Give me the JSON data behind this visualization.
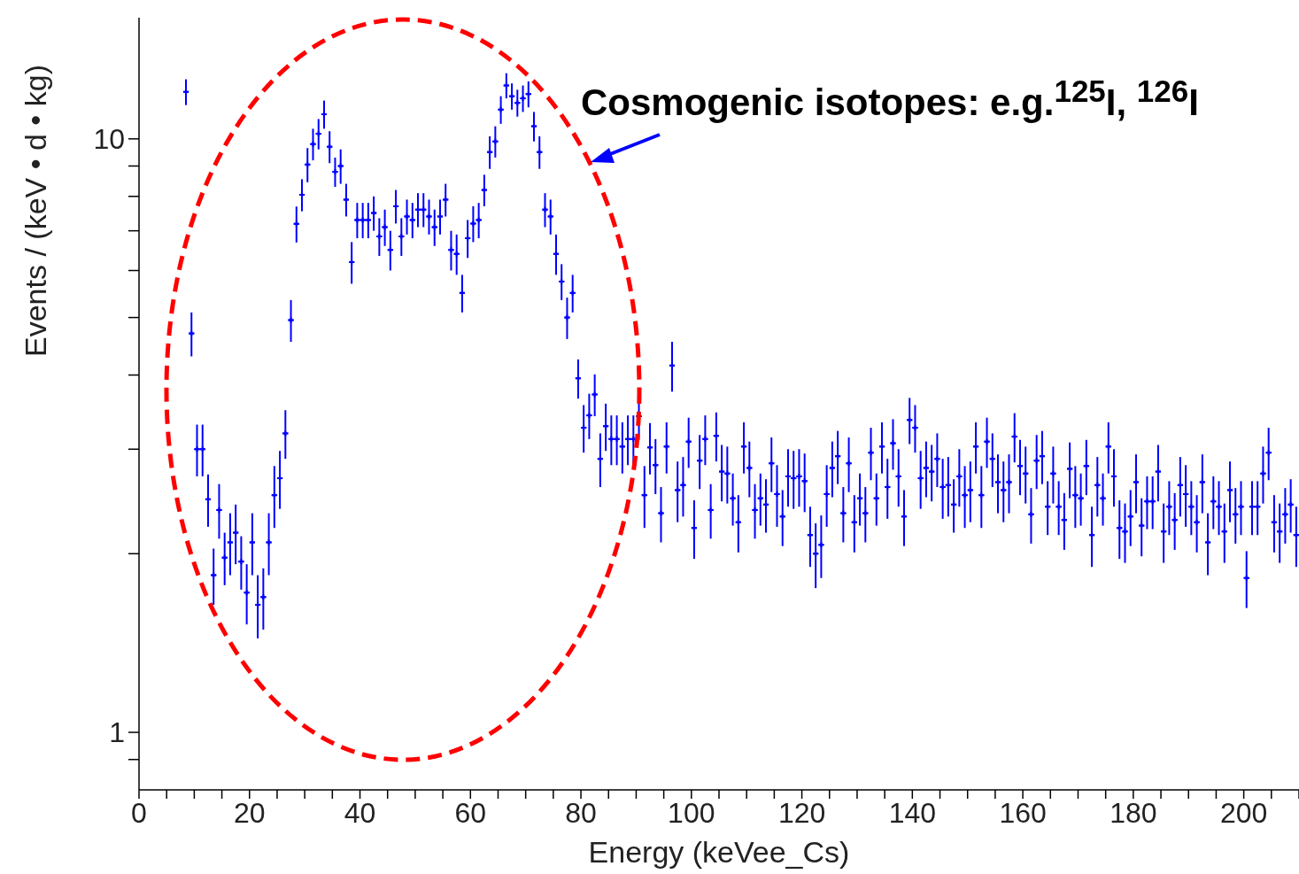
{
  "chart_data": {
    "type": "scatter",
    "xlabel": "Energy (keVee_Cs)",
    "ylabel": "Events / (keV • d • kg)",
    "annotations": [
      "Cosmogenic isotopes: e.g.$^{125}$I, $^{126}$I"
    ],
    "log": "y",
    "grid": false,
    "legend": false,
    "marker": "cross",
    "xlim": [
      0,
      210
    ],
    "xticks": [
      0,
      {
        "value": 5,
        "label": null
      },
      {
        "value": 10,
        "label": null
      },
      {
        "value": 15,
        "label": null
      },
      20,
      {
        "value": 25,
        "label": null
      },
      {
        "value": 30,
        "label": null
      },
      {
        "value": 35,
        "label": null
      },
      40,
      {
        "value": 45,
        "label": null
      },
      {
        "value": 50,
        "label": null
      },
      {
        "value": 55,
        "label": null
      },
      60,
      {
        "value": 65,
        "label": null
      },
      {
        "value": 70,
        "label": null
      },
      {
        "value": 75,
        "label": null
      },
      80,
      {
        "value": 85,
        "label": null
      },
      {
        "value": 90,
        "label": null
      },
      {
        "value": 95,
        "label": null
      },
      100,
      {
        "value": 105,
        "label": null
      },
      {
        "value": 110,
        "label": null
      },
      {
        "value": 115,
        "label": null
      },
      120,
      {
        "value": 125,
        "label": null
      },
      {
        "value": 130,
        "label": null
      },
      {
        "value": 135,
        "label": null
      },
      140,
      {
        "value": 145,
        "label": null
      },
      {
        "value": 150,
        "label": null
      },
      {
        "value": 155,
        "label": null
      },
      160,
      {
        "value": 165,
        "label": null
      },
      {
        "value": 170,
        "label": null
      },
      {
        "value": 175,
        "label": null
      },
      180,
      {
        "value": 185,
        "label": null
      },
      {
        "value": 190,
        "label": null
      },
      {
        "value": 195,
        "label": null
      },
      200,
      {
        "value": 205,
        "label": null
      },
      {
        "value": 210,
        "label": null
      }
    ],
    "ylim": [
      0.8,
      16
    ],
    "yticks": [
      {
        "value": 0.9,
        "label": null
      },
      1,
      {
        "value": 2,
        "label": null
      },
      {
        "value": 3,
        "label": null
      },
      {
        "value": 4,
        "label": null
      },
      {
        "value": 5,
        "label": null
      },
      {
        "value": 6,
        "label": null
      },
      {
        "value": 7,
        "label": null
      },
      {
        "value": 8,
        "label": null
      },
      {
        "value": 9,
        "label": null
      },
      10
    ],
    "series": [
      {
        "color": "#0000ff",
        "x": [
          8.5,
          9.5,
          10.5,
          11.5,
          12.5,
          13.5,
          14.5,
          15.5,
          16.5,
          17.5,
          18.5,
          19.5,
          20.5,
          21.5,
          22.5,
          23.5,
          24.5,
          25.5,
          26.5,
          27.5,
          28.5,
          29.5,
          30.5,
          31.5,
          32.5,
          33.5,
          34.5,
          35.5,
          36.5,
          37.5,
          38.5,
          39.5,
          40.5,
          41.5,
          42.5,
          43.5,
          44.5,
          45.5,
          46.5,
          47.5,
          48.5,
          49.5,
          50.5,
          51.5,
          52.5,
          53.5,
          54.5,
          55.5,
          56.5,
          57.5,
          58.5,
          59.5,
          60.5,
          61.5,
          62.5,
          63.5,
          64.5,
          65.5,
          66.5,
          67.5,
          68.5,
          69.5,
          70.5,
          71.5,
          72.5,
          73.5,
          74.5,
          75.5,
          76.5,
          77.5,
          78.5,
          79.5,
          80.5,
          81.5,
          82.5,
          83.5,
          84.5,
          85.5,
          86.5,
          87.5,
          88.5,
          89.5,
          90.5,
          91.5,
          92.5,
          93.5,
          94.5,
          95.5,
          96.5,
          97.5,
          98.5,
          99.5,
          100.5,
          101.5,
          102.5,
          103.5,
          104.5,
          105.5,
          106.5,
          107.5,
          108.5,
          109.5,
          110.5,
          111.5,
          112.5,
          113.5,
          114.5,
          115.5,
          116.5,
          117.5,
          118.5,
          119.5,
          120.5,
          121.5,
          122.5,
          123.5,
          124.5,
          125.5,
          126.5,
          127.5,
          128.5,
          129.5,
          130.5,
          131.5,
          132.5,
          133.5,
          134.5,
          135.5,
          136.5,
          137.5,
          138.5,
          139.5,
          140.5,
          141.5,
          142.5,
          143.5,
          144.5,
          145.5,
          146.5,
          147.5,
          148.5,
          149.5,
          150.5,
          151.5,
          152.5,
          153.5,
          154.5,
          155.5,
          156.5,
          157.5,
          158.5,
          159.5,
          160.5,
          161.5,
          162.5,
          163.5,
          164.5,
          165.5,
          166.5,
          167.5,
          168.5,
          169.5,
          170.5,
          171.5,
          172.5,
          173.5,
          174.5,
          175.5,
          176.5,
          177.5,
          178.5,
          179.5,
          180.5,
          181.5,
          182.5,
          183.5,
          184.5,
          185.5,
          186.5,
          187.5,
          188.5,
          189.5,
          190.5,
          191.5,
          192.5,
          193.5,
          194.5,
          195.5,
          196.5,
          197.5,
          198.5,
          199.5,
          200.5,
          201.5,
          202.5,
          203.5,
          204.5,
          205.5,
          206.5,
          207.5,
          208.5,
          209.5
        ],
        "values": [
          12.0,
          4.7,
          3.0,
          3.0,
          2.47,
          1.84,
          2.37,
          1.97,
          2.09,
          2.17,
          1.94,
          1.72,
          2.09,
          1.64,
          1.69,
          2.09,
          2.51,
          2.68,
          3.19,
          4.95,
          7.19,
          8.05,
          9.05,
          9.8,
          10.2,
          11.0,
          9.7,
          8.8,
          9.0,
          7.9,
          6.2,
          7.3,
          7.3,
          7.3,
          7.5,
          6.85,
          7.1,
          6.5,
          7.7,
          6.85,
          7.4,
          7.3,
          7.6,
          7.6,
          7.4,
          7.1,
          7.4,
          7.9,
          6.5,
          6.4,
          5.5,
          6.8,
          7.2,
          7.3,
          8.2,
          9.5,
          9.9,
          11.2,
          12.3,
          11.8,
          11.5,
          11.7,
          11.9,
          10.5,
          9.5,
          7.6,
          7.4,
          6.4,
          5.75,
          5.0,
          5.5,
          3.95,
          3.26,
          3.42,
          3.71,
          2.89,
          3.28,
          3.12,
          3.12,
          3.03,
          3.12,
          3.12,
          3.41,
          2.51,
          3.02,
          2.82,
          2.34,
          3.03,
          4.15,
          2.56,
          2.61,
          3.09,
          2.21,
          2.87,
          3.12,
          2.37,
          3.16,
          2.75,
          2.73,
          2.48,
          2.26,
          3.03,
          2.79,
          2.37,
          2.48,
          2.42,
          2.84,
          2.52,
          2.31,
          2.7,
          2.68,
          2.7,
          2.65,
          2.15,
          2.0,
          2.07,
          2.52,
          2.79,
          2.92,
          2.34,
          2.84,
          2.26,
          2.48,
          2.34,
          2.96,
          2.48,
          3.03,
          2.59,
          3.07,
          2.7,
          2.31,
          3.36,
          3.26,
          2.68,
          2.79,
          2.75,
          2.89,
          2.59,
          2.61,
          2.42,
          2.7,
          2.51,
          2.56,
          3.03,
          2.51,
          3.09,
          2.89,
          2.64,
          2.56,
          2.64,
          3.15,
          2.81,
          2.73,
          2.33,
          2.87,
          2.92,
          2.4,
          2.73,
          2.4,
          2.28,
          2.78,
          2.51,
          2.48,
          2.81,
          2.15,
          2.61,
          2.48,
          3.03,
          2.7,
          2.21,
          2.18,
          2.31,
          2.64,
          2.23,
          2.45,
          2.45,
          2.75,
          2.18,
          2.4,
          2.28,
          2.61,
          2.52,
          2.4,
          2.26,
          2.64,
          2.09,
          2.45,
          2.4,
          2.18,
          2.56,
          2.33,
          2.4,
          1.82,
          2.4,
          2.4,
          2.73,
          2.96,
          2.26,
          2.18,
          2.33,
          2.42,
          2.15
        ],
        "errors": [
          0.6,
          0.4,
          0.3,
          0.3,
          0.25,
          0.2,
          0.25,
          0.2,
          0.25,
          0.25,
          0.2,
          0.2,
          0.25,
          0.2,
          0.2,
          0.25,
          0.3,
          0.3,
          0.3,
          0.4,
          0.5,
          0.5,
          0.6,
          0.6,
          0.6,
          0.6,
          0.6,
          0.5,
          0.6,
          0.5,
          0.5,
          0.5,
          0.5,
          0.5,
          0.5,
          0.5,
          0.5,
          0.5,
          0.5,
          0.5,
          0.5,
          0.5,
          0.5,
          0.5,
          0.5,
          0.5,
          0.5,
          0.5,
          0.5,
          0.5,
          0.4,
          0.5,
          0.5,
          0.5,
          0.5,
          0.6,
          0.6,
          0.6,
          0.6,
          0.6,
          0.6,
          0.6,
          0.6,
          0.6,
          0.6,
          0.5,
          0.5,
          0.5,
          0.4,
          0.4,
          0.4,
          0.3,
          0.3,
          0.3,
          0.3,
          0.3,
          0.3,
          0.3,
          0.3,
          0.3,
          0.3,
          0.3,
          0.3,
          0.3,
          0.3,
          0.3,
          0.25,
          0.3,
          0.4,
          0.3,
          0.3,
          0.3,
          0.25,
          0.3,
          0.3,
          0.25,
          0.3,
          0.3,
          0.3,
          0.25,
          0.25,
          0.3,
          0.3,
          0.25,
          0.25,
          0.25,
          0.3,
          0.3,
          0.25,
          0.3,
          0.3,
          0.3,
          0.3,
          0.25,
          0.25,
          0.25,
          0.3,
          0.3,
          0.3,
          0.25,
          0.3,
          0.25,
          0.25,
          0.25,
          0.3,
          0.25,
          0.3,
          0.3,
          0.3,
          0.3,
          0.25,
          0.3,
          0.3,
          0.3,
          0.3,
          0.3,
          0.3,
          0.3,
          0.3,
          0.25,
          0.3,
          0.3,
          0.3,
          0.3,
          0.3,
          0.3,
          0.3,
          0.3,
          0.3,
          0.3,
          0.3,
          0.3,
          0.3,
          0.25,
          0.3,
          0.3,
          0.25,
          0.3,
          0.25,
          0.25,
          0.3,
          0.3,
          0.25,
          0.3,
          0.25,
          0.3,
          0.25,
          0.3,
          0.3,
          0.25,
          0.25,
          0.25,
          0.3,
          0.25,
          0.25,
          0.25,
          0.3,
          0.25,
          0.25,
          0.25,
          0.3,
          0.3,
          0.25,
          0.25,
          0.3,
          0.25,
          0.25,
          0.25,
          0.25,
          0.3,
          0.25,
          0.25,
          0.2,
          0.25,
          0.25,
          0.3,
          0.3,
          0.25,
          0.25,
          0.25,
          0.25,
          0.25
        ],
        "xerrors": [
          0.5,
          0.5,
          0.5,
          0.5,
          0.5,
          0.5,
          0.5,
          0.5,
          0.5,
          0.5,
          0.5,
          0.5,
          0.5,
          0.5,
          0.5,
          0.5,
          0.5,
          0.5,
          0.5,
          0.5,
          0.5,
          0.5,
          0.5,
          0.5,
          0.5,
          0.5,
          0.5,
          0.5,
          0.5,
          0.5,
          0.5,
          0.5,
          0.5,
          0.5,
          0.5,
          0.5,
          0.5,
          0.5,
          0.5,
          0.5,
          0.5,
          0.5,
          0.5,
          0.5,
          0.5,
          0.5,
          0.5,
          0.5,
          0.5,
          0.5,
          0.5,
          0.5,
          0.5,
          0.5,
          0.5,
          0.5,
          0.5,
          0.5,
          0.5,
          0.5,
          0.5,
          0.5,
          0.5,
          0.5,
          0.5,
          0.5,
          0.5,
          0.5,
          0.5,
          0.5,
          0.5,
          0.5,
          0.5,
          0.5,
          0.5,
          0.5,
          0.5,
          0.5,
          0.5,
          0.5,
          0.5,
          0.5,
          0.5,
          0.5,
          0.5,
          0.5,
          0.5,
          0.5,
          0.5,
          0.5,
          0.5,
          0.5,
          0.5,
          0.5,
          0.5,
          0.5,
          0.5,
          0.5,
          0.5,
          0.5,
          0.5,
          0.5,
          0.5,
          0.5,
          0.5,
          0.5,
          0.5,
          0.5,
          0.5,
          0.5,
          0.5,
          0.5,
          0.5,
          0.5,
          0.5,
          0.5,
          0.5,
          0.5,
          0.5,
          0.5,
          0.5,
          0.5,
          0.5,
          0.5,
          0.5,
          0.5,
          0.5,
          0.5,
          0.5,
          0.5,
          0.5,
          0.5,
          0.5,
          0.5,
          0.5,
          0.5,
          0.5,
          0.5,
          0.5,
          0.5,
          0.5,
          0.5,
          0.5,
          0.5,
          0.5,
          0.5,
          0.5,
          0.5,
          0.5,
          0.5,
          0.5,
          0.5,
          0.5,
          0.5,
          0.5,
          0.5,
          0.5,
          0.5,
          0.5,
          0.5,
          0.5,
          0.5,
          0.5,
          0.5,
          0.5,
          0.5,
          0.5,
          0.5,
          0.5,
          0.5,
          0.5,
          0.5,
          0.5,
          0.5,
          0.5,
          0.5,
          0.5,
          0.5,
          0.5,
          0.5,
          0.5,
          0.5,
          0.5,
          0.5,
          0.5,
          0.5,
          0.5,
          0.5,
          0.5,
          0.5,
          0.5,
          0.5,
          0.5,
          0.5,
          0.5,
          0.5,
          0.5,
          0.5,
          0.5,
          0.5,
          0.5,
          0.5
        ]
      }
    ]
  }
}
